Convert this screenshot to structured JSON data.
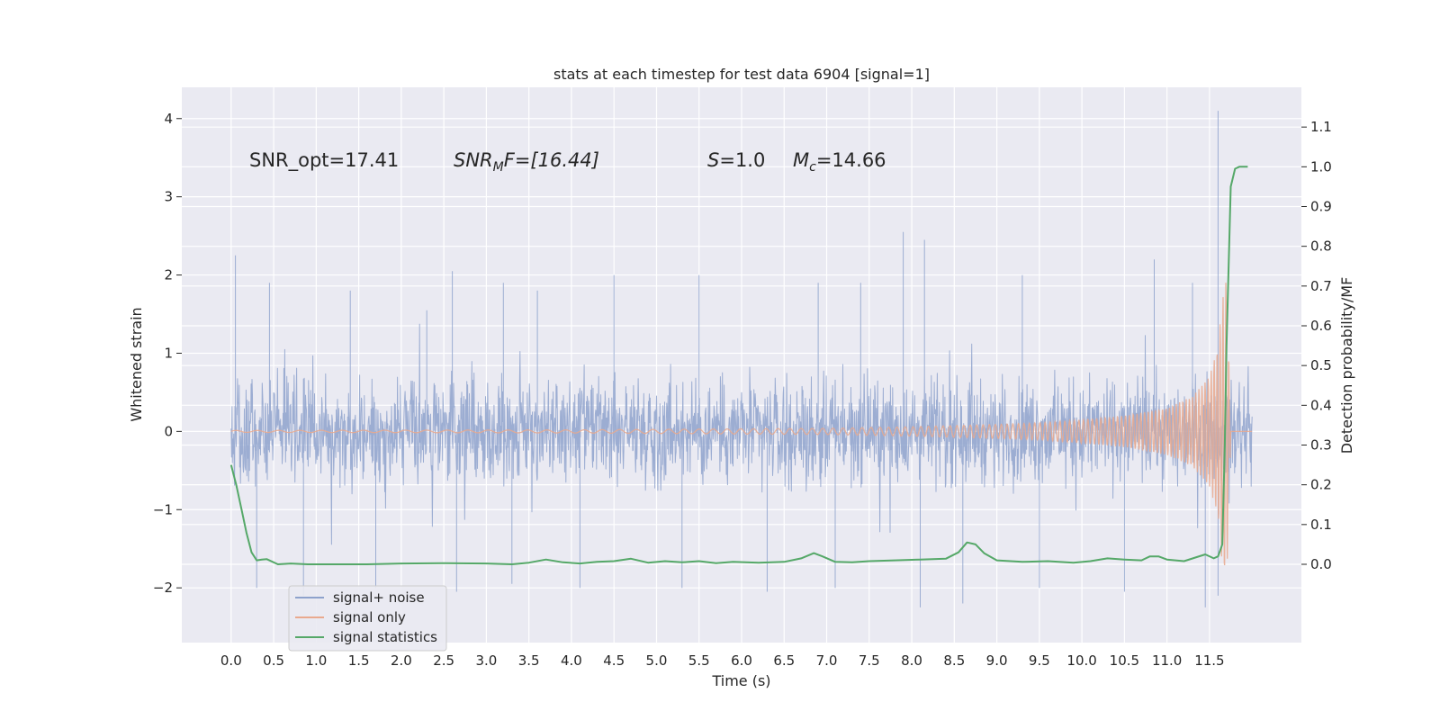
{
  "chart_data": {
    "type": "line",
    "title": "stats at each timestep for test data 6904 [signal=1]",
    "xlabel": "Time (s)",
    "ylabel_left": "Whitened strain",
    "ylabel_right": "Detection probability/MF",
    "xlim": [
      -0.58,
      12.58
    ],
    "ylim_left": [
      -2.7,
      4.4
    ],
    "ylim_right": [
      -0.197,
      1.2
    ],
    "x_ticks": [
      0.0,
      0.5,
      1.0,
      1.5,
      2.0,
      2.5,
      3.0,
      3.5,
      4.0,
      4.5,
      5.0,
      5.5,
      6.0,
      6.5,
      7.0,
      7.5,
      8.0,
      8.5,
      9.0,
      9.5,
      10.0,
      10.5,
      11.0,
      11.5
    ],
    "x_tick_labels": [
      "0.0",
      "0.5",
      "1.0",
      "1.5",
      "2.0",
      "2.5",
      "3.0",
      "3.5",
      "4.0",
      "4.5",
      "5.0",
      "5.5",
      "6.0",
      "6.5",
      "7.0",
      "7.5",
      "8.0",
      "8.5",
      "9.0",
      "9.5",
      "10.0",
      "10.5",
      "11.0",
      "11.5"
    ],
    "y_left_ticks": [
      -2,
      -1,
      0,
      1,
      2,
      3,
      4
    ],
    "y_left_tick_labels": [
      "−2",
      "−1",
      "0",
      "1",
      "2",
      "3",
      "4"
    ],
    "y_right_ticks": [
      0.0,
      0.1,
      0.2,
      0.3,
      0.4,
      0.5,
      0.6,
      0.7,
      0.8,
      0.9,
      1.0,
      1.1
    ],
    "y_right_tick_labels": [
      "0.0",
      "0.1",
      "0.2",
      "0.3",
      "0.4",
      "0.5",
      "0.6",
      "0.7",
      "0.8",
      "0.9",
      "1.0",
      "1.1"
    ],
    "grid": true,
    "legend_position": "lower-left",
    "annotations": {
      "snr_opt": "SNR_opt=17.41",
      "snr_mf_main": "SNR",
      "snr_mf_sub": "M",
      "snr_mf_rest": "F=[16.44]",
      "s_sym": "S",
      "s_val": "=1.0",
      "mc_sym": "M",
      "mc_sub": "c",
      "mc_val": "=14.66"
    },
    "series": [
      {
        "name": "signal+ noise",
        "axis": "left",
        "color": "#8ea2cc",
        "noise_envelope": {
          "x_range": [
            0.0,
            12.0
          ],
          "typical_upper": 0.8,
          "typical_lower": -0.8,
          "spike_upper": [
            [
              0.05,
              2.25
            ],
            [
              0.45,
              1.9
            ],
            [
              1.4,
              1.8
            ],
            [
              2.3,
              1.55
            ],
            [
              2.6,
              2.05
            ],
            [
              3.2,
              1.9
            ],
            [
              3.6,
              1.8
            ],
            [
              4.5,
              2.0
            ],
            [
              5.5,
              2.0
            ],
            [
              6.9,
              1.9
            ],
            [
              7.4,
              1.9
            ],
            [
              7.9,
              2.55
            ],
            [
              8.15,
              2.45
            ],
            [
              9.3,
              2.0
            ],
            [
              10.85,
              2.2
            ],
            [
              11.3,
              1.9
            ],
            [
              11.6,
              4.1
            ]
          ],
          "spike_lower": [
            [
              0.3,
              -2.0
            ],
            [
              0.85,
              -2.1
            ],
            [
              1.7,
              -2.0
            ],
            [
              2.65,
              -2.05
            ],
            [
              3.3,
              -1.95
            ],
            [
              4.1,
              -2.0
            ],
            [
              5.3,
              -2.0
            ],
            [
              6.3,
              -2.05
            ],
            [
              7.1,
              -2.0
            ],
            [
              8.1,
              -2.25
            ],
            [
              8.6,
              -2.2
            ],
            [
              9.5,
              -2.0
            ],
            [
              10.5,
              -2.05
            ],
            [
              11.45,
              -2.25
            ],
            [
              11.6,
              -2.1
            ]
          ]
        }
      },
      {
        "name": "signal only",
        "axis": "left",
        "color": "#e9a98e",
        "chirp_amplitude": {
          "x": [
            0.0,
            4.0,
            7.0,
            8.0,
            9.0,
            9.5,
            10.0,
            10.5,
            11.0,
            11.3,
            11.5,
            11.6,
            11.65,
            11.7,
            11.75
          ],
          "values": [
            0.012,
            0.02,
            0.04,
            0.06,
            0.09,
            0.11,
            0.15,
            0.2,
            0.3,
            0.45,
            0.7,
            1.1,
            1.7,
            2.0,
            0.0
          ]
        }
      },
      {
        "name": "signal statistics",
        "axis": "right",
        "color": "#55a868",
        "x": [
          0.0,
          0.06,
          0.12,
          0.18,
          0.24,
          0.3,
          0.36,
          0.42,
          0.55,
          0.7,
          0.9,
          1.2,
          1.6,
          2.0,
          2.5,
          3.0,
          3.3,
          3.5,
          3.7,
          3.9,
          4.1,
          4.3,
          4.5,
          4.7,
          4.9,
          5.1,
          5.3,
          5.5,
          5.7,
          5.9,
          6.2,
          6.5,
          6.7,
          6.85,
          6.95,
          7.1,
          7.3,
          7.5,
          7.8,
          8.1,
          8.4,
          8.55,
          8.65,
          8.75,
          8.85,
          9.0,
          9.3,
          9.6,
          9.9,
          10.1,
          10.3,
          10.5,
          10.7,
          10.8,
          10.9,
          11.0,
          11.2,
          11.35,
          11.45,
          11.55,
          11.6,
          11.65,
          11.68,
          11.7,
          11.75,
          11.8,
          11.85,
          11.9,
          11.95
        ],
        "values": [
          0.25,
          0.2,
          0.14,
          0.08,
          0.03,
          0.01,
          0.012,
          0.013,
          0.0,
          0.002,
          0.0,
          0.0,
          0.0,
          0.002,
          0.003,
          0.002,
          0.0,
          0.004,
          0.012,
          0.005,
          0.002,
          0.006,
          0.008,
          0.014,
          0.004,
          0.008,
          0.005,
          0.008,
          0.003,
          0.006,
          0.004,
          0.006,
          0.015,
          0.028,
          0.02,
          0.006,
          0.005,
          0.008,
          0.01,
          0.012,
          0.014,
          0.03,
          0.055,
          0.05,
          0.028,
          0.01,
          0.006,
          0.008,
          0.004,
          0.008,
          0.015,
          0.012,
          0.01,
          0.02,
          0.02,
          0.012,
          0.008,
          0.018,
          0.025,
          0.015,
          0.02,
          0.05,
          0.3,
          0.55,
          0.95,
          0.995,
          1.0,
          1.0,
          1.0
        ]
      }
    ]
  }
}
